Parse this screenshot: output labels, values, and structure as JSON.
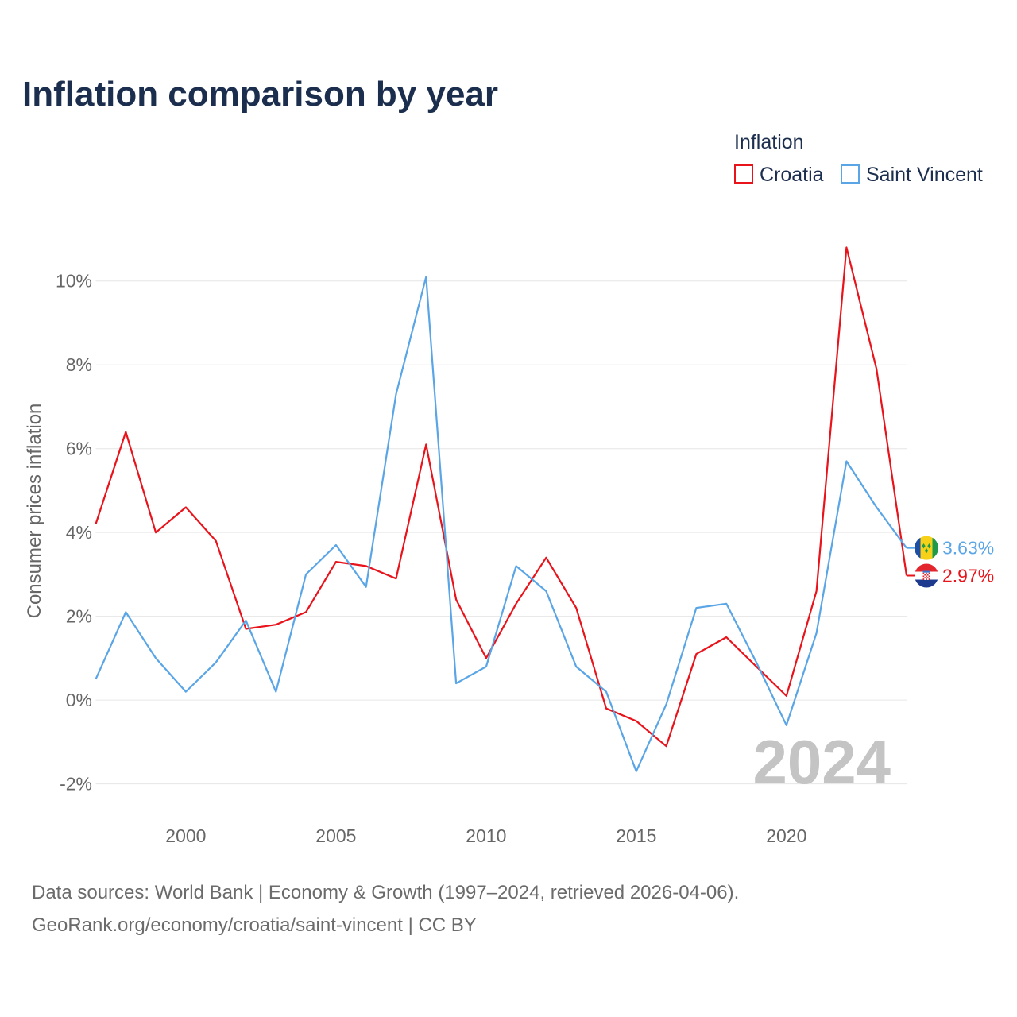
{
  "footer": {
    "sources": "Data sources: World Bank | Economy & Growth (1997–2024, retrieved 2026-04-06).",
    "attribution": "GeoRank.org/economy/croatia/saint-vincent | CC BY"
  },
  "chart_data": {
    "type": "line",
    "title": "Inflation comparison by year",
    "xlabel": "",
    "ylabel": "Consumer prices inflation",
    "legend_title": "Inflation",
    "annotation": "2024",
    "grid": true,
    "xlim": [
      1997,
      2024
    ],
    "ylim": [
      -2.5,
      11
    ],
    "x_ticks": [
      2000,
      2005,
      2010,
      2015,
      2020
    ],
    "x_tick_labels": [
      "2000",
      "2005",
      "2010",
      "2015",
      "2020"
    ],
    "y_ticks": [
      -2,
      0,
      2,
      4,
      6,
      8,
      10
    ],
    "y_tick_labels": [
      "-2%",
      "0%",
      "2%",
      "4%",
      "6%",
      "8%",
      "10%"
    ],
    "x": [
      1997,
      1998,
      1999,
      2000,
      2001,
      2002,
      2003,
      2004,
      2005,
      2006,
      2007,
      2008,
      2009,
      2010,
      2011,
      2012,
      2013,
      2014,
      2015,
      2016,
      2017,
      2018,
      2019,
      2020,
      2021,
      2022,
      2023,
      2024
    ],
    "series": [
      {
        "name": "Croatia",
        "color": "#e8131b",
        "flag_icon": "croatia-flag-icon",
        "end_label": "2.97%",
        "values": [
          4.2,
          6.4,
          4.0,
          4.6,
          3.8,
          1.7,
          1.8,
          2.1,
          3.3,
          3.2,
          2.9,
          6.1,
          2.4,
          1.0,
          2.3,
          3.4,
          2.2,
          -0.2,
          -0.5,
          -1.1,
          1.1,
          1.5,
          0.8,
          0.1,
          2.6,
          10.8,
          7.9,
          2.97
        ]
      },
      {
        "name": "Saint Vincent",
        "color": "#5aa5e6",
        "flag_icon": "saint-vincent-flag-icon",
        "end_label": "3.63%",
        "values": [
          0.5,
          2.1,
          1.0,
          0.2,
          0.9,
          1.9,
          0.2,
          3.0,
          3.7,
          2.7,
          7.3,
          10.1,
          0.4,
          0.8,
          3.2,
          2.6,
          0.8,
          0.2,
          -1.7,
          -0.1,
          2.2,
          2.3,
          0.9,
          -0.6,
          1.6,
          5.7,
          4.6,
          3.63
        ]
      }
    ]
  }
}
